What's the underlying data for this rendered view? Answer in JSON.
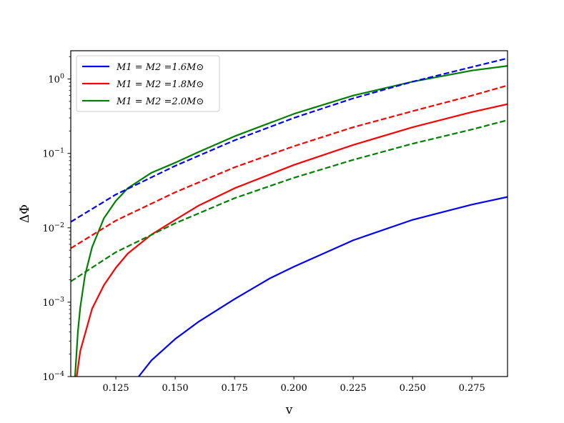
{
  "chart_data": {
    "type": "line",
    "xlabel": "v",
    "ylabel": "ΔΦ",
    "xscale": "linear",
    "yscale": "log",
    "xlim": [
      0.106,
      0.29
    ],
    "ylim": [
      0.0001,
      2.4
    ],
    "xticks": [
      0.125,
      0.15,
      0.175,
      0.2,
      0.225,
      0.25,
      0.275
    ],
    "xtick_labels": [
      "0.125",
      "0.150",
      "0.175",
      "0.200",
      "0.225",
      "0.250",
      "0.275"
    ],
    "yticks": [
      0.0001,
      0.001,
      0.01,
      0.1,
      1
    ],
    "ytick_labels": [
      {
        "base": "10",
        "exp": "−4"
      },
      {
        "base": "10",
        "exp": "−3"
      },
      {
        "base": "10",
        "exp": "−2"
      },
      {
        "base": "10",
        "exp": "−1"
      },
      {
        "base": "10",
        "exp": "0"
      }
    ],
    "grid": false,
    "legend_position": "top-left",
    "legend": [
      {
        "label": "M1 = M2 =1.6M⊙",
        "color": "#0000ff"
      },
      {
        "label": "M1 = M2 =1.8M⊙",
        "color": "#ff0000"
      },
      {
        "label": "M1 = M2 =2.0M⊙",
        "color": "#008000"
      }
    ],
    "series": [
      {
        "group": 0,
        "style": "solid",
        "color": "#0000ff",
        "x": [
          0.1346,
          0.14,
          0.15,
          0.16,
          0.175,
          0.19,
          0.2,
          0.225,
          0.25,
          0.275,
          0.29
        ],
        "y": [
          0.0001,
          0.000165,
          0.00032,
          0.00055,
          0.0011,
          0.0021,
          0.003,
          0.0068,
          0.0128,
          0.0205,
          0.026
        ]
      },
      {
        "group": 1,
        "style": "solid",
        "color": "#ff0000",
        "x": [
          0.1085,
          0.11,
          0.115,
          0.12,
          0.125,
          0.13,
          0.14,
          0.15,
          0.16,
          0.175,
          0.2,
          0.225,
          0.25,
          0.275,
          0.29
        ],
        "y": [
          0.0001,
          0.00022,
          0.00082,
          0.0017,
          0.0029,
          0.0045,
          0.0081,
          0.0128,
          0.02,
          0.034,
          0.07,
          0.13,
          0.225,
          0.36,
          0.46
        ]
      },
      {
        "group": 2,
        "style": "solid",
        "color": "#008000",
        "x": [
          0.1078,
          0.109,
          0.11,
          0.112,
          0.115,
          0.12,
          0.125,
          0.13,
          0.14,
          0.15,
          0.16,
          0.175,
          0.2,
          0.225,
          0.25,
          0.275,
          0.29
        ],
        "y": [
          0.0001,
          0.0004,
          0.00085,
          0.0023,
          0.0055,
          0.0135,
          0.023,
          0.034,
          0.055,
          0.075,
          0.105,
          0.17,
          0.34,
          0.6,
          0.92,
          1.3,
          1.5
        ]
      },
      {
        "group": 0,
        "style": "dashed",
        "color": "#0000ff",
        "x": [
          0.106,
          0.125,
          0.15,
          0.175,
          0.2,
          0.225,
          0.25,
          0.275,
          0.29
        ],
        "y": [
          0.012,
          0.028,
          0.068,
          0.15,
          0.3,
          0.55,
          0.92,
          1.45,
          1.9
        ]
      },
      {
        "group": 1,
        "style": "dashed",
        "color": "#ff0000",
        "x": [
          0.106,
          0.125,
          0.15,
          0.175,
          0.2,
          0.225,
          0.25,
          0.275,
          0.29
        ],
        "y": [
          0.0053,
          0.0125,
          0.03,
          0.065,
          0.125,
          0.225,
          0.37,
          0.6,
          0.82
        ]
      },
      {
        "group": 2,
        "style": "dashed",
        "color": "#008000",
        "x": [
          0.106,
          0.125,
          0.15,
          0.175,
          0.2,
          0.225,
          0.25,
          0.275,
          0.29
        ],
        "y": [
          0.0019,
          0.0047,
          0.0115,
          0.025,
          0.047,
          0.082,
          0.135,
          0.21,
          0.28
        ]
      }
    ]
  }
}
